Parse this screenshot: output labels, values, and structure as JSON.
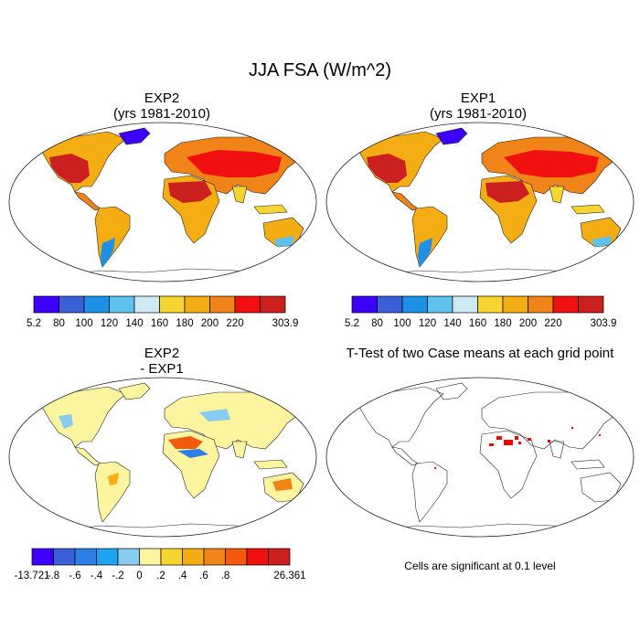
{
  "figure": {
    "title": "JJA FSA (W/m^2)"
  },
  "panels": [
    {
      "title_line1": "EXP2",
      "title_line2": "(yrs 1981-2010)",
      "colorbar": {
        "colors": [
          "#3d00ff",
          "#3a5fd9",
          "#1e90e8",
          "#5ec2ee",
          "#cfeaf2",
          "#f7d531",
          "#f5ad14",
          "#f08418",
          "#f01010",
          "#cc2020"
        ],
        "labels": [
          "5.2",
          "80",
          "100",
          "120",
          "140",
          "160",
          "180",
          "200",
          "220",
          "303.9"
        ]
      }
    },
    {
      "title_line1": "EXP1",
      "title_line2": "(yrs 1981-2010)",
      "colorbar": {
        "colors": [
          "#3d00ff",
          "#3a5fd9",
          "#1e90e8",
          "#5ec2ee",
          "#cfeaf2",
          "#f7d531",
          "#f5ad14",
          "#f08418",
          "#f01010",
          "#cc2020"
        ],
        "labels": [
          "5.2",
          "80",
          "100",
          "120",
          "140",
          "160",
          "180",
          "200",
          "220",
          "303.9"
        ]
      }
    },
    {
      "title_line1": "EXP2",
      "title_line2": "- EXP1",
      "colorbar": {
        "colors": [
          "#3d00ff",
          "#3a5fd9",
          "#2b7fe6",
          "#1ea4ee",
          "#88ccef",
          "#fdf4a0",
          "#f7d531",
          "#f5ad14",
          "#f08418",
          "#f25a10",
          "#f01010",
          "#cc2020"
        ],
        "labels": [
          "-13.721",
          "-.8",
          "-.6",
          "-.4",
          "-.2",
          "0",
          ".2",
          ".4",
          ".6",
          ".8",
          "26.361"
        ]
      }
    },
    {
      "title": "T-Test of two Case means at each grid point",
      "note": "Cells are significant at 0.1 level",
      "significance_color": "#ff0000"
    }
  ]
}
